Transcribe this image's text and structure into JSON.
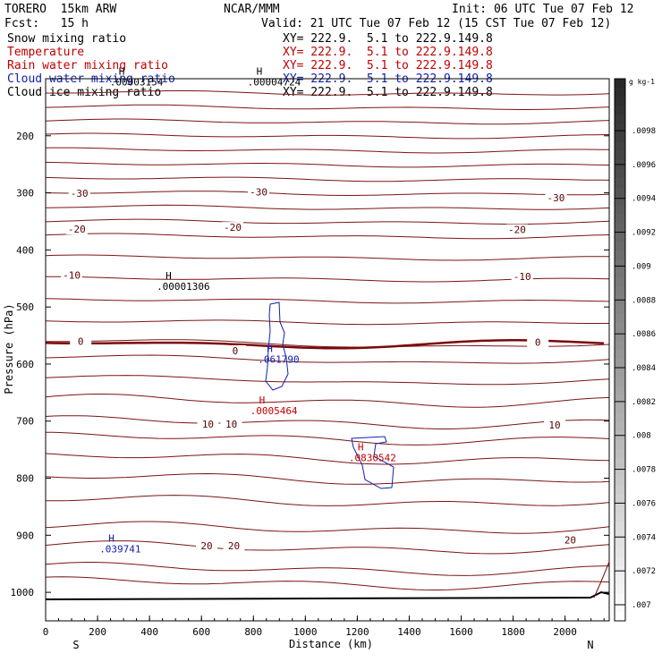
{
  "header": {
    "model": "TORERO  15km ARW",
    "center": "NCAR/MMM",
    "init": "Init: 06 UTC Tue 07 Feb 12",
    "fcst": "Fcst:   15 h",
    "valid": "Valid: 21 UTC Tue 07 Feb 12 (15 CST Tue 07 Feb 12)"
  },
  "fields": [
    {
      "name": "Snow mixing ratio",
      "xy": "XY= 222.9.  5.1 to 222.9.149.8",
      "color": "#000000"
    },
    {
      "name": "Temperature",
      "xy": "XY= 222.9.  5.1 to 222.9.149.8",
      "color": "#c00000"
    },
    {
      "name": "Rain water mixing ratio",
      "xy": "XY= 222.9.  5.1 to 222.9.149.8",
      "color": "#c00000"
    },
    {
      "name": "Cloud water mixing ratio",
      "xy": "XY= 222.9.  5.1 to 222.9.149.8",
      "color": "#1020b0"
    },
    {
      "name": "Cloud ice mixing ratio",
      "xy": "XY= 222.9.  5.1 to 222.9.149.8",
      "color": "#000000"
    }
  ],
  "chart_data": {
    "type": "line",
    "xlabel": "Distance (km)",
    "ylabel": "Pressure (hPa)",
    "xlim": [
      0,
      2170
    ],
    "ylim": [
      1050,
      100
    ],
    "x_ticks": [
      "0",
      "200",
      "400",
      "600",
      "800",
      "1000",
      "1200",
      "1400",
      "1600",
      "1800",
      "2000"
    ],
    "x_tick_values": [
      0,
      200,
      400,
      600,
      800,
      1000,
      1200,
      1400,
      1600,
      1800,
      2000
    ],
    "y_ticks": [
      "200",
      "300",
      "400",
      "500",
      "600",
      "700",
      "800",
      "900",
      "1000"
    ],
    "y_tick_values": [
      200,
      300,
      400,
      500,
      600,
      700,
      800,
      900,
      1000
    ],
    "x_end_labels": {
      "left": "S",
      "right": "N"
    },
    "temperature_labels": [
      {
        "text": "-30",
        "x": 130,
        "p": 302
      },
      {
        "text": "-30",
        "x": 820,
        "p": 300
      },
      {
        "text": "-30",
        "x": 1965,
        "p": 310
      },
      {
        "text": "-20",
        "x": 120,
        "p": 365
      },
      {
        "text": "-20",
        "x": 720,
        "p": 362
      },
      {
        "text": "-20",
        "x": 1815,
        "p": 366
      },
      {
        "text": "-10",
        "x": 100,
        "p": 446
      },
      {
        "text": "-10",
        "x": 1835,
        "p": 448
      },
      {
        "text": "0",
        "x": 135,
        "p": 562
      },
      {
        "text": "0",
        "x": 730,
        "p": 578
      },
      {
        "text": "0",
        "x": 1895,
        "p": 563
      },
      {
        "text": "10",
        "x": 625,
        "p": 707
      },
      {
        "text": "10",
        "x": 715,
        "p": 707
      },
      {
        "text": "10",
        "x": 1960,
        "p": 708
      },
      {
        "text": "20",
        "x": 620,
        "p": 920
      },
      {
        "text": "20",
        "x": 725,
        "p": 920
      },
      {
        "text": "20",
        "x": 2020,
        "p": 910
      }
    ],
    "maxima": [
      {
        "text": ".00003154",
        "x": 330,
        "p": 112,
        "color": "#000000"
      },
      {
        "text": ".00004724",
        "x": 860,
        "p": 112,
        "color": "#000000"
      },
      {
        "text": ".00001306",
        "x": 510,
        "p": 470,
        "color": "#000000"
      },
      {
        "text": ".061790",
        "x": 900,
        "p": 598,
        "color": "#1020b0"
      },
      {
        "text": ".0005464",
        "x": 870,
        "p": 688,
        "color": "#c00000"
      },
      {
        "text": ".0830542",
        "x": 1250,
        "p": 770,
        "color": "#c00000"
      },
      {
        "text": ".039741",
        "x": 290,
        "p": 930,
        "color": "#1020b0"
      }
    ],
    "colorbar": {
      "unit": "g kg-1",
      "ticks": [
        ".0098",
        ".0096",
        ".0094",
        ".0092",
        ".009",
        ".0088",
        ".0086",
        ".0084",
        ".0082",
        ".008",
        ".0078",
        ".0076",
        ".0074",
        ".0072",
        ".007"
      ]
    }
  }
}
